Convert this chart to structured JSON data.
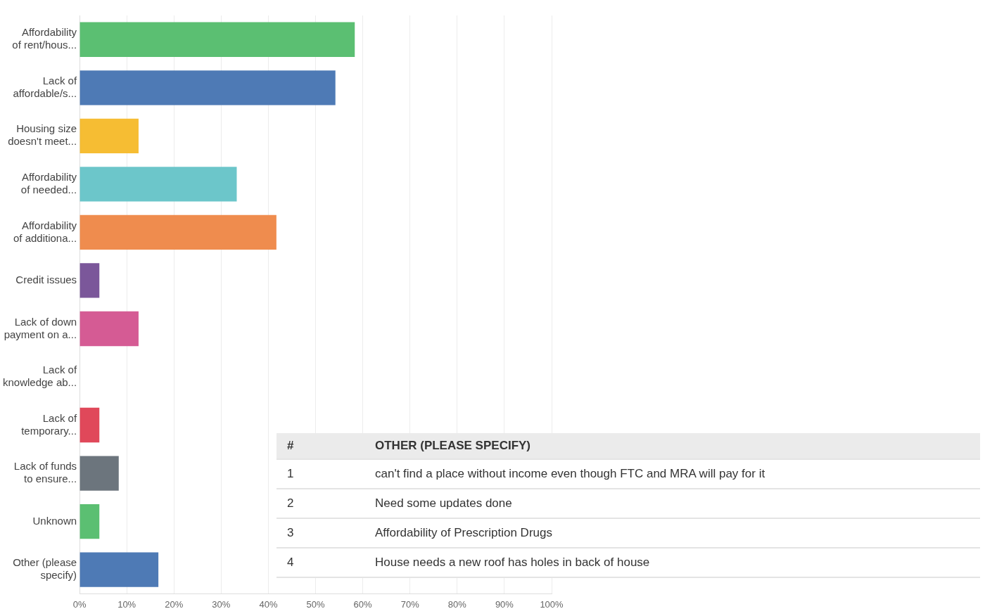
{
  "chart_data": {
    "type": "bar",
    "orientation": "horizontal",
    "categories": [
      "Affordability of rent/hous...",
      "Lack of affordable/s...",
      "Housing size doesn't meet...",
      "Affordability of needed...",
      "Affordability of additiona...",
      "Credit issues",
      "Lack of down payment on a...",
      "Lack of knowledge ab...",
      "Lack of temporary...",
      "Lack of funds to ensure...",
      "Unknown",
      "Other (please specify)"
    ],
    "values": [
      58.3,
      54.2,
      12.5,
      33.3,
      41.7,
      4.2,
      12.5,
      0,
      4.2,
      8.3,
      4.2,
      16.7
    ],
    "colors": [
      "#5bbf72",
      "#4e7ab5",
      "#f6bd33",
      "#6cc6ca",
      "#ef8c4e",
      "#7b579a",
      "#d55b94",
      "#9fa5aa",
      "#e0485a",
      "#6c757d",
      "#5bbf72",
      "#4e7ab5"
    ],
    "xlim": [
      0,
      100
    ],
    "xticks": [
      {
        "value": 0,
        "label": "0%"
      },
      {
        "value": 10,
        "label": "10%"
      },
      {
        "value": 20,
        "label": "20%"
      },
      {
        "value": 30,
        "label": "30%"
      },
      {
        "value": 40,
        "label": "40%"
      },
      {
        "value": 50,
        "label": "50%"
      },
      {
        "value": 60,
        "label": "60%"
      },
      {
        "value": 70,
        "label": "70%"
      },
      {
        "value": 80,
        "label": "80%"
      },
      {
        "value": 90,
        "label": "90%"
      },
      {
        "value": 100,
        "label": "100%"
      }
    ],
    "grid": "x",
    "annotations": [
      "#",
      "OTHER (PLEASE SPECIFY)",
      "1",
      "can't find a place without income even though FTC and MRA will pay for it",
      "2",
      "Need some updates done",
      "3",
      "Affordability of Prescription Drugs",
      "4",
      "House needs a new roof has holes in back of house"
    ]
  }
}
